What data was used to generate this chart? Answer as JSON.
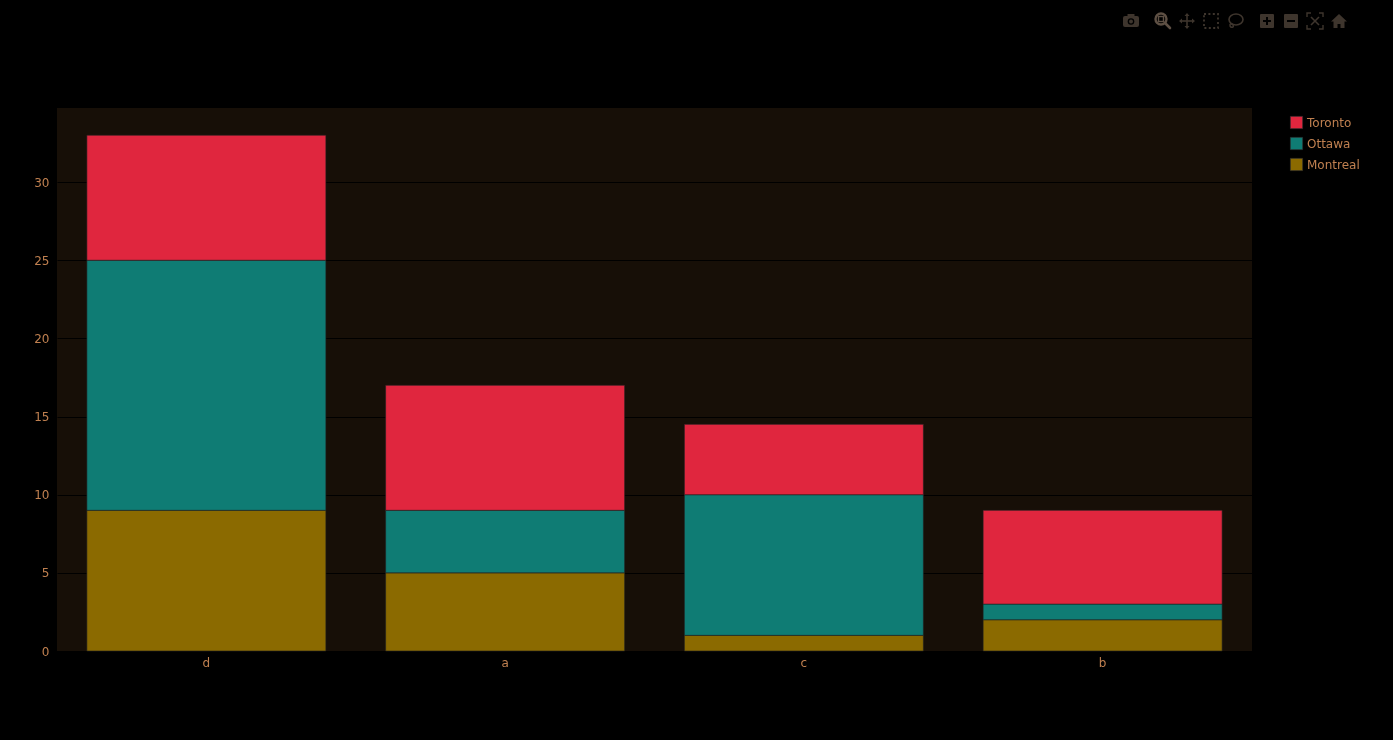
{
  "chart_data": {
    "type": "bar",
    "categories": [
      "d",
      "a",
      "c",
      "b"
    ],
    "stacked": true,
    "series": [
      {
        "name": "Montreal",
        "color": "#8b6a00",
        "values": [
          9,
          5,
          1,
          2
        ]
      },
      {
        "name": "Ottawa",
        "color": "#0f7c74",
        "values": [
          16,
          4,
          9,
          1
        ]
      },
      {
        "name": "Toronto",
        "color": "#e0263e",
        "values": [
          8,
          8,
          4.5,
          6
        ]
      }
    ],
    "ylim": [
      0,
      34.74
    ],
    "yticks": [
      0,
      5,
      10,
      15,
      20,
      25,
      30
    ],
    "grid": "y",
    "legend": "top right"
  }
}
